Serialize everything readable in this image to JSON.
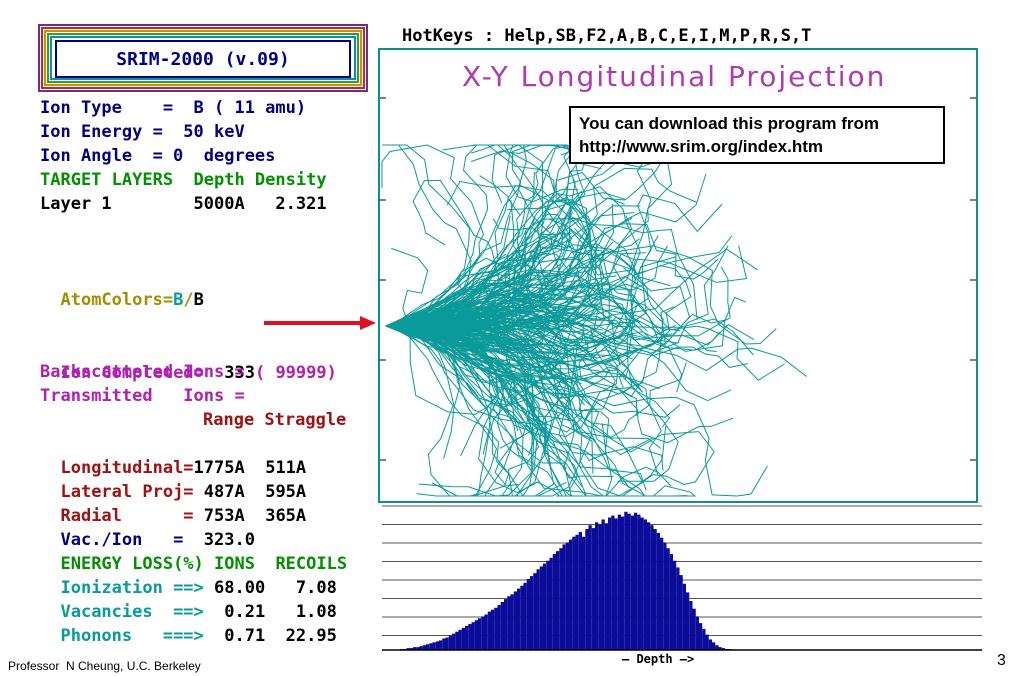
{
  "hotkeys": "HotKeys : Help,SB,F2,A,B,C,E,I,M,P,R,S,T",
  "app_title": "SRIM-2000 (v.09)",
  "ion": {
    "type": "Ion Type    =  B ( 11 amu)",
    "energy": "Ion Energy =  50 keV",
    "angle": "Ion Angle  = 0  degrees"
  },
  "target_header": "TARGET LAYERS  Depth Density",
  "layer1": "Layer 1        5000A   2.321",
  "atom_colors": {
    "label": "AtomColors=",
    "b1": "B",
    "slash": "/",
    "b2": "B"
  },
  "ion_completed": {
    "label": "Ion Completed=",
    "count": "  333",
    "total": "( 99999)"
  },
  "backscattered": "Backscattered Ions =",
  "transmitted": "Transmitted   Ions =",
  "range_header": "Range Straggle",
  "results": [
    {
      "label": "Longitudinal=",
      "range": "1775A",
      "straggle": "  511A"
    },
    {
      "label": "Lateral Proj=",
      "range": " 487A",
      "straggle": "  595A"
    },
    {
      "label": "Radial      =",
      "range": " 753A",
      "straggle": "  365A"
    }
  ],
  "vac_per_ion": {
    "label": "Vac./Ion   =",
    "value": "  323.0"
  },
  "energy_loss_header": {
    "label": "ENERGY LOSS(%)",
    "ions": " IONS",
    "recoils": "  RECOILS"
  },
  "energy_loss": [
    {
      "label": "Ionization ==>",
      "ions": " 68.00",
      "recoils": "   7.08"
    },
    {
      "label": "Vacancies  ==>",
      "ions": "  0.21",
      "recoils": "   1.08"
    },
    {
      "label": "Phonons   ===>",
      "ions": "  0.71",
      "recoils": "  22.95"
    }
  ],
  "plot_title": "X-Y Longitudinal Projection",
  "note_line1": "You can download this program from",
  "note_line2": "http://www.srim.org/index.htm",
  "depth_label": "— Depth —>",
  "footer_credit": "Professor  N Cheung, U.C. Berkeley",
  "slide_number": "3",
  "colors": {
    "teal": "#0b9a9a",
    "navy": "#000080",
    "magenta": "#b020b0",
    "green": "#009000",
    "olive": "#a09000",
    "darkred": "#a01010",
    "bar": "#0c0c9a",
    "arrow": "#e01020"
  },
  "chart_data": {
    "type": "bar",
    "title": "",
    "xlabel": "Depth",
    "ylabel": "",
    "values": [
      1,
      1,
      2,
      2,
      3,
      3,
      4,
      5,
      6,
      7,
      8,
      9,
      10,
      12,
      13,
      15,
      17,
      19,
      21,
      23,
      25,
      27,
      29,
      31,
      33,
      35,
      37,
      40,
      42,
      44,
      47,
      50,
      53,
      56,
      58,
      61,
      64,
      67,
      70,
      74,
      77,
      80,
      84,
      87,
      90,
      93,
      96,
      100,
      103,
      106,
      110,
      112,
      115,
      118,
      120,
      123,
      118,
      126,
      130,
      127,
      133,
      131,
      136,
      132,
      138,
      140,
      137,
      141,
      139,
      144,
      142,
      140,
      143,
      141,
      138,
      136,
      133,
      130,
      126,
      122,
      117,
      112,
      106,
      100,
      93,
      86,
      78,
      69,
      60,
      51,
      43,
      35,
      28,
      22,
      16,
      11,
      8,
      5,
      3,
      2,
      1,
      1
    ]
  }
}
